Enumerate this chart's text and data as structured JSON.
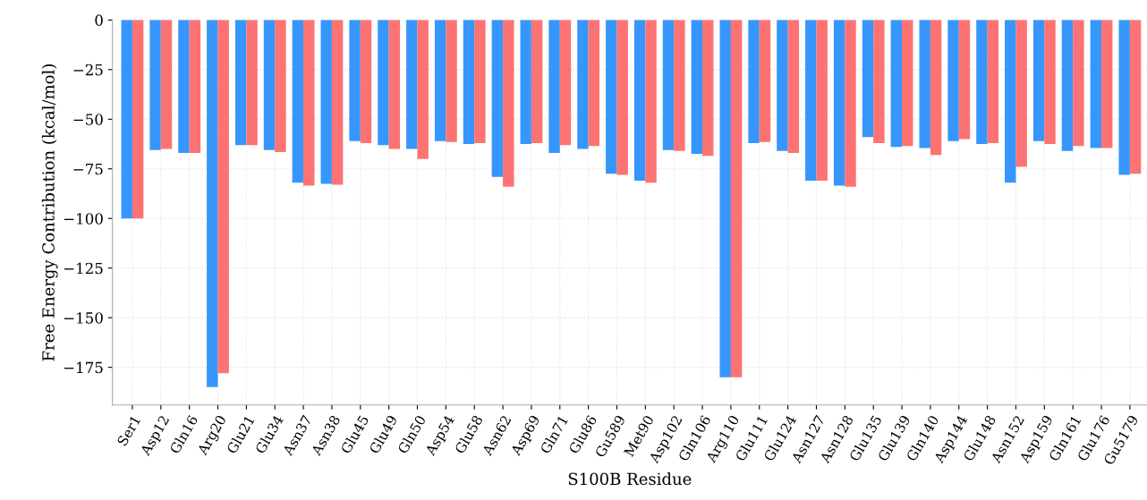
{
  "chart_data": {
    "type": "bar",
    "xlabel": "S100B Residue",
    "ylabel": "Free Energy Contribution (kcal/mol)",
    "categories": [
      "Ser1",
      "Asp12",
      "Gln16",
      "Arg20",
      "Glu21",
      "Glu34",
      "Asn37",
      "Asn38",
      "Glu45",
      "Glu49",
      "Gln50",
      "Asp54",
      "Glu58",
      "Asn62",
      "Asp69",
      "Gln71",
      "Glu86",
      "Gu589",
      "Met90",
      "Asp102",
      "Gln106",
      "Arg110",
      "Glu111",
      "Glu124",
      "Asn127",
      "Asn128",
      "Glu135",
      "Glu139",
      "Gln140",
      "Asp144",
      "Glu148",
      "Asn152",
      "Asp159",
      "Gln161",
      "Glu176",
      "Gu5179"
    ],
    "series": [
      {
        "color": "#3796fc",
        "values": [
          -100,
          -65.5,
          -67,
          -185,
          -63,
          -65.5,
          -82,
          -82.5,
          -61,
          -63,
          -65,
          -61,
          -62.5,
          -79,
          -62.5,
          -67,
          -65,
          -77.5,
          -81,
          -65.5,
          -67.5,
          -180,
          -62,
          -66,
          -81,
          -83.5,
          -59,
          -64,
          -64.5,
          -61,
          -62.5,
          -82,
          -61,
          -66,
          -64.5,
          -78
        ]
      },
      {
        "color": "#fd7373",
        "values": [
          -100,
          -65,
          -67,
          -178,
          -63,
          -66.5,
          -83.5,
          -83,
          -62,
          -65,
          -70,
          -61.5,
          -62,
          -84,
          -62,
          -63,
          -63.5,
          -78,
          -82,
          -66,
          -68.5,
          -180,
          -61.5,
          -67,
          -81,
          -84,
          -62,
          -63.5,
          -68,
          -60,
          -62,
          -74,
          -62.5,
          -63.5,
          -64.5,
          -77.5
        ]
      }
    ],
    "ylim": [
      -194,
      0
    ],
    "yticks": [
      {
        "value": 0,
        "label": "0"
      },
      {
        "value": -25,
        "label": "−25"
      },
      {
        "value": -50,
        "label": "−50"
      },
      {
        "value": -75,
        "label": "−75"
      },
      {
        "value": -100,
        "label": "−100"
      },
      {
        "value": -125,
        "label": "−125"
      },
      {
        "value": -150,
        "label": "−150"
      },
      {
        "value": -175,
        "label": "−175"
      }
    ],
    "grid": true
  }
}
